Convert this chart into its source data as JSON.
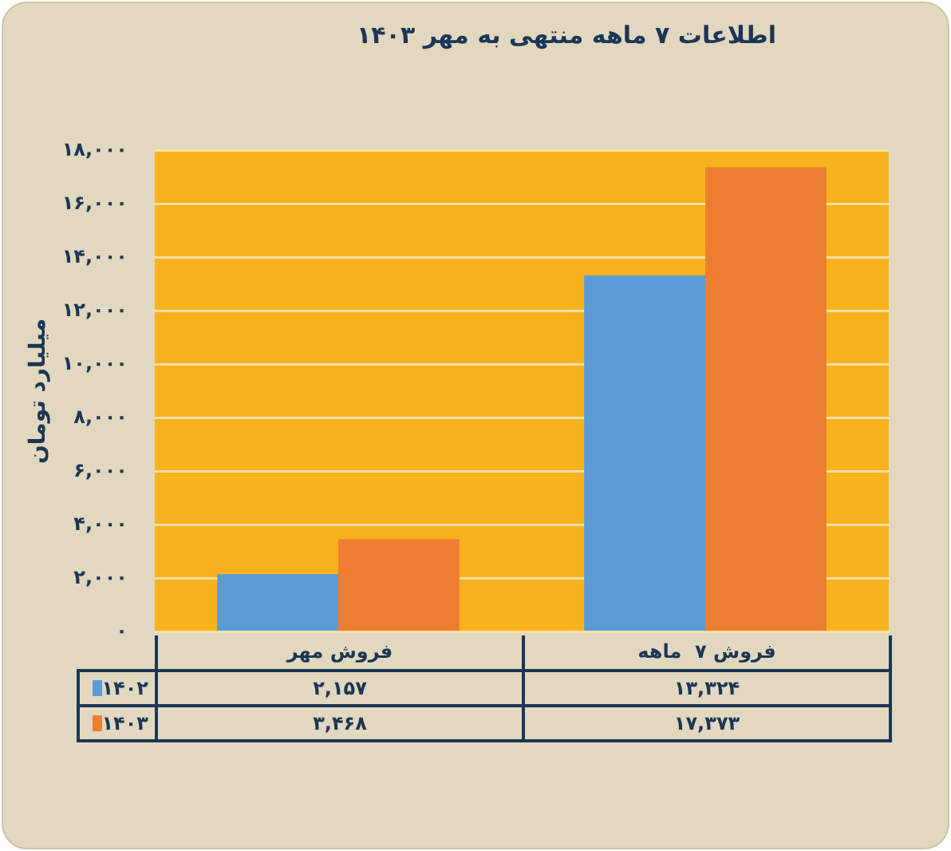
{
  "chart_data": {
    "type": "bar",
    "title": "اطلاعات ۷ ماهه منتهی به مهر ۱۴۰۳",
    "ylabel": "میلیارد تومان",
    "categories": [
      "فروش مهر",
      "فروش ۷  ماهه"
    ],
    "series": [
      {
        "name": "۱۴۰۲",
        "color": "#5b9bd5",
        "values": [
          2157,
          13324
        ],
        "value_labels": [
          "۲,۱۵۷",
          "۱۳,۳۲۴"
        ]
      },
      {
        "name": "۱۴۰۳",
        "color": "#ed7d31",
        "values": [
          3468,
          17373
        ],
        "value_labels": [
          "۳,۴۶۸",
          "۱۷,۳۷۳"
        ]
      }
    ],
    "ylim": [
      0,
      18000
    ],
    "yticks": [
      {
        "value": 0,
        "label": "۰"
      },
      {
        "value": 2000,
        "label": "۲,۰۰۰"
      },
      {
        "value": 4000,
        "label": "۴,۰۰۰"
      },
      {
        "value": 6000,
        "label": "۶,۰۰۰"
      },
      {
        "value": 8000,
        "label": "۸,۰۰۰"
      },
      {
        "value": 10000,
        "label": "۱۰,۰۰۰"
      },
      {
        "value": 12000,
        "label": "۱۲,۰۰۰"
      },
      {
        "value": 14000,
        "label": "۱۴,۰۰۰"
      },
      {
        "value": 16000,
        "label": "۱۶,۰۰۰"
      },
      {
        "value": 18000,
        "label": "۱۸,۰۰۰"
      }
    ],
    "grid": "y",
    "legend": "bottom"
  }
}
